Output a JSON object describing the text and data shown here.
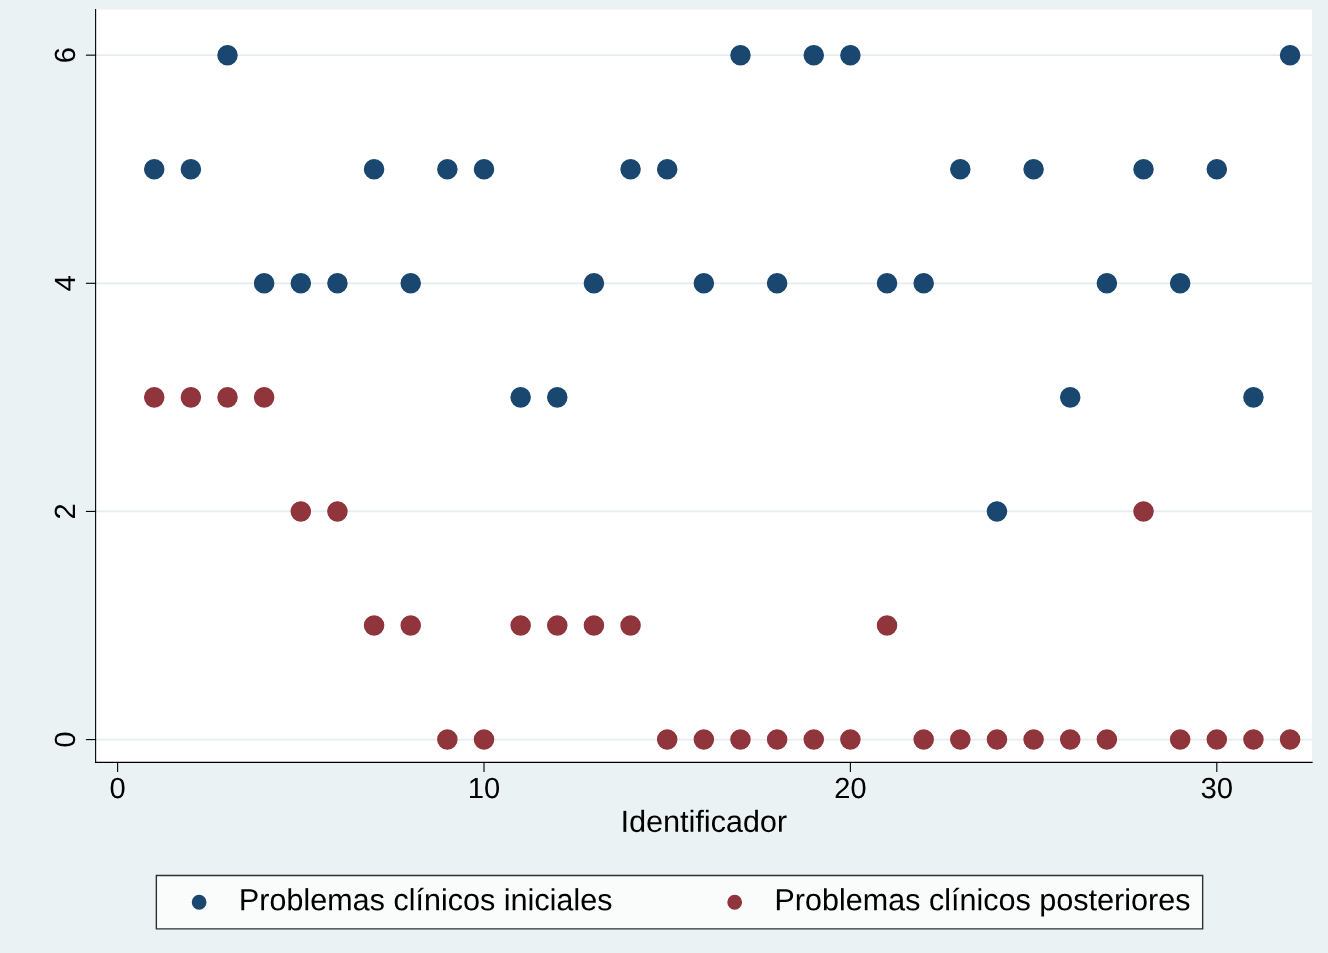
{
  "chart_data": {
    "type": "scatter",
    "xlabel": "Identificador",
    "x": [
      1,
      2,
      3,
      4,
      5,
      6,
      7,
      8,
      9,
      10,
      11,
      12,
      13,
      14,
      15,
      16,
      17,
      18,
      19,
      20,
      21,
      22,
      23,
      24,
      25,
      26,
      27,
      28,
      29,
      30,
      31,
      32
    ],
    "series": [
      {
        "name": "Problemas clínicos iniciales",
        "color": "#1a476f",
        "values": [
          5,
          5,
          6,
          4,
          4,
          4,
          5,
          4,
          5,
          5,
          3,
          3,
          4,
          5,
          5,
          4,
          6,
          4,
          6,
          6,
          4,
          4,
          5,
          2,
          5,
          3,
          4,
          5,
          4,
          5,
          3,
          6
        ]
      },
      {
        "name": "Problemas clínicos posteriores",
        "color": "#90353b",
        "values": [
          3,
          3,
          3,
          3,
          2,
          2,
          1,
          1,
          0,
          0,
          1,
          1,
          1,
          1,
          0,
          0,
          0,
          0,
          0,
          0,
          1,
          0,
          0,
          0,
          0,
          0,
          0,
          2,
          0,
          0,
          0,
          0
        ]
      }
    ],
    "xlim": [
      -0.6,
      32.6
    ],
    "ylim": [
      -0.2,
      6.4
    ],
    "xticks": [
      0,
      10,
      20,
      30
    ],
    "yticks": [
      0,
      2,
      4,
      6
    ],
    "grid": "y",
    "legend": "bottom",
    "marker": "circle"
  }
}
